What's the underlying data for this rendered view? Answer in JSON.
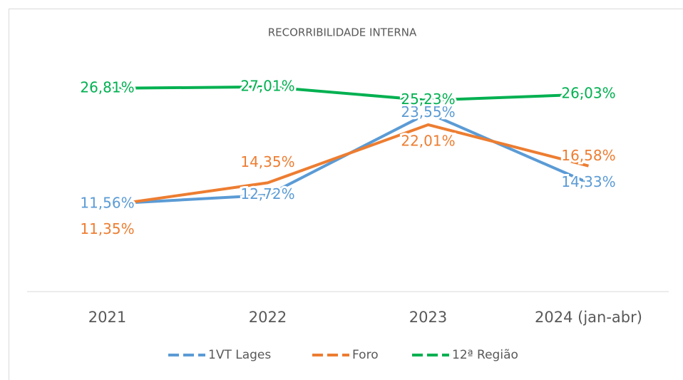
{
  "chart_data": {
    "type": "line",
    "title": "RECORRIBILIDADE INTERNA",
    "categories": [
      "2021",
      "2022",
      "2023",
      "2024 (jan-abr)"
    ],
    "ylim": [
      0,
      30
    ],
    "series": [
      {
        "name": "1VT Lages",
        "color": "#5b9bd5",
        "values": [
          11.56,
          12.72,
          23.55,
          14.33
        ],
        "value_labels": [
          "11,56%",
          "12,72%",
          "23,55%",
          "14,33%"
        ]
      },
      {
        "name": "Foro",
        "color": "#ed7d31",
        "values": [
          11.35,
          14.35,
          22.01,
          16.58
        ],
        "value_labels": [
          "11,35%",
          "14,35%",
          "22,01%",
          "16,58%"
        ]
      },
      {
        "name": "12ª Região",
        "color": "#00b050",
        "values": [
          26.81,
          27.01,
          25.23,
          26.03
        ],
        "value_labels": [
          "26,81%",
          "27,01%",
          "25,23%",
          "26,03%"
        ]
      }
    ],
    "legend": "bottom"
  }
}
